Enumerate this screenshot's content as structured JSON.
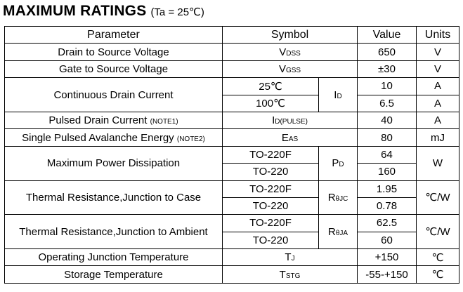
{
  "title": {
    "main": "MAXIMUM RATINGS",
    "condition": "(Ta = 25℃)"
  },
  "headers": {
    "parameter": "Parameter",
    "symbol": "Symbol",
    "value": "Value",
    "units": "Units"
  },
  "rows": {
    "vdss": {
      "parameter": "Drain to Source Voltage",
      "sym": "V",
      "sub": "DSS",
      "value": "650",
      "unit": "V"
    },
    "vgss": {
      "parameter": "Gate to Source Voltage",
      "sym": "V",
      "sub": "GSS",
      "value": "±30",
      "unit": "V"
    },
    "id": {
      "parameter": "Continuous Drain Current",
      "cond1": "25℃",
      "cond2": "100℃",
      "sym": "I",
      "sub": "D",
      "value1": "10",
      "value2": "6.5",
      "unit1": "A",
      "unit2": "A"
    },
    "idpulse": {
      "parameter": "Pulsed Drain Current",
      "note": "(NOTE1)",
      "sym": "I",
      "sub": "D(PULSE)",
      "value": "40",
      "unit": "A"
    },
    "eas": {
      "parameter": "Single Pulsed Avalanche Energy",
      "note": "(NOTE2)",
      "sym": "E",
      "sub": "AS",
      "value": "80",
      "unit": "mJ"
    },
    "pd": {
      "parameter": "Maximum Power Dissipation",
      "cond1": "TO-220F",
      "cond2": "TO-220",
      "sym": "P",
      "sub": "D",
      "value1": "64",
      "value2": "160",
      "unit": "W"
    },
    "rjc": {
      "parameter": "Thermal Resistance,Junction to Case",
      "cond1": "TO-220F",
      "cond2": "TO-220",
      "sym": "R",
      "sub": "θJC",
      "value1": "1.95",
      "value2": "0.78",
      "unit": "℃/W"
    },
    "rja": {
      "parameter": "Thermal Resistance,Junction to Ambient",
      "cond1": "TO-220F",
      "cond2": "TO-220",
      "sym": "R",
      "sub": "θJA",
      "value1": "62.5",
      "value2": "60",
      "unit": "℃/W"
    },
    "tj": {
      "parameter": "Operating Junction Temperature",
      "sym": "T",
      "sub": "J",
      "value": "+150",
      "unit": "℃"
    },
    "tstg": {
      "parameter": "Storage Temperature",
      "sym": "T",
      "sub": "STG",
      "value": "-55-+150",
      "unit": "℃"
    }
  }
}
